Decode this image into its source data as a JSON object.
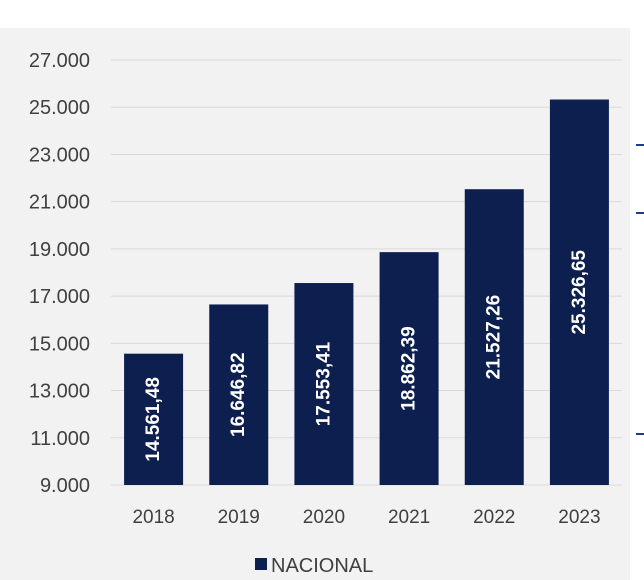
{
  "colors": {
    "bar": "#0d1f4f",
    "grid": "#d9d9d9",
    "panel": "#f2f2f2",
    "text": "#404040",
    "edge_accent": "#1f3b8a"
  },
  "chart_data": {
    "type": "bar",
    "title": "",
    "xlabel": "",
    "ylabel": "",
    "grid": true,
    "legend_position": "bottom-center",
    "categories": [
      "2018",
      "2019",
      "2020",
      "2021",
      "2022",
      "2023"
    ],
    "series": [
      {
        "name": "NACIONAL",
        "values": [
          14561.48,
          16646.82,
          17553.41,
          18862.39,
          21527.26,
          25326.65
        ],
        "data_labels": [
          "14.561,48",
          "16.646,82",
          "17.553,41",
          "18.862,39",
          "21.527,26",
          "25.326,65"
        ]
      }
    ],
    "ylim": [
      9000,
      27000
    ],
    "yticks": [
      9000,
      11000,
      13000,
      15000,
      17000,
      19000,
      21000,
      23000,
      25000,
      27000
    ],
    "ytick_labels": [
      "9.000",
      "11.000",
      "13.000",
      "15.000",
      "17.000",
      "19.000",
      "21.000",
      "23.000",
      "25.000",
      "27.000"
    ]
  }
}
